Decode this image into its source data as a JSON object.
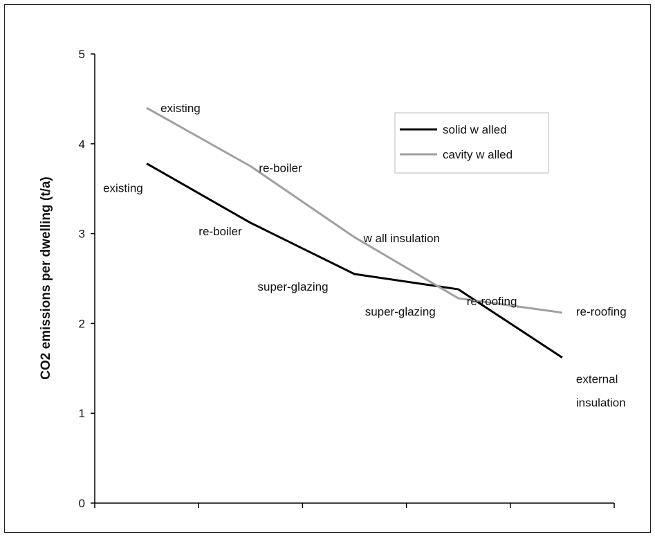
{
  "chart_data": {
    "type": "line",
    "title": "",
    "xlabel": "",
    "ylabel": "CO2 emissions per dwelling (t/a)",
    "ylim": [
      0,
      5
    ],
    "yticks": [
      "0",
      "1",
      "2",
      "3",
      "4",
      "5"
    ],
    "x_tick_count": 5,
    "grid": false,
    "legend_position": "top-right",
    "series": [
      {
        "name": "solid w alled",
        "color": "#000000",
        "points": [
          {
            "x": 0.5,
            "y": 3.78,
            "label": "existing"
          },
          {
            "x": 1.5,
            "y": 3.12,
            "label": "re-boiler"
          },
          {
            "x": 2.5,
            "y": 2.55,
            "label": "super-glazing"
          },
          {
            "x": 3.5,
            "y": 2.38,
            "label": "re-roofing"
          },
          {
            "x": 4.5,
            "y": 1.62,
            "label": "external insulation"
          }
        ]
      },
      {
        "name": "cavity w alled",
        "color": "#a0a0a0",
        "points": [
          {
            "x": 0.5,
            "y": 4.4,
            "label": "existing"
          },
          {
            "x": 1.5,
            "y": 3.75,
            "label": "re-boiler"
          },
          {
            "x": 2.5,
            "y": 2.96,
            "label": "w all insulation"
          },
          {
            "x": 3.5,
            "y": 2.28,
            "label": "super-glazing"
          },
          {
            "x": 4.5,
            "y": 2.12,
            "label": "re-roofing"
          }
        ]
      }
    ]
  }
}
